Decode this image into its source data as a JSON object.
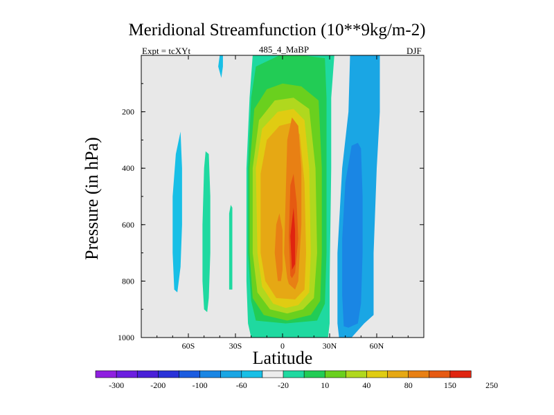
{
  "chart_data": {
    "type": "heatmap",
    "title": "Meridional Streamfunction (10**9kg/m-2)",
    "left_label": "Expt = tcXYt",
    "center_label": "485_4_MaBP",
    "right_label": "DJF",
    "xlabel": "Latitude",
    "ylabel": "Pressure (in hPa)",
    "xlim": [
      -90,
      90
    ],
    "ylim": [
      1000,
      0
    ],
    "x_ticks": [
      {
        "value": -60,
        "label": "60S"
      },
      {
        "value": -30,
        "label": "30S"
      },
      {
        "value": 0,
        "label": "0"
      },
      {
        "value": 30,
        "label": "30N"
      },
      {
        "value": 60,
        "label": "60N"
      }
    ],
    "y_ticks": [
      {
        "value": 200,
        "label": "200"
      },
      {
        "value": 400,
        "label": "400"
      },
      {
        "value": 600,
        "label": "600"
      },
      {
        "value": 800,
        "label": "800"
      },
      {
        "value": 1000,
        "label": "1000"
      }
    ],
    "colorbar": {
      "colors": [
        "#8f1fe0",
        "#6c1ee0",
        "#4a20d8",
        "#2a32d8",
        "#1c5ce0",
        "#1a86e4",
        "#1aa6e4",
        "#18bfe6",
        "#ececec",
        "#1fd9a0",
        "#22cc55",
        "#6ad01e",
        "#b0d81e",
        "#e0cc12",
        "#e6a814",
        "#e88014",
        "#e65a12",
        "#e02410"
      ],
      "labels": [
        {
          "after": 1,
          "text": "-300"
        },
        {
          "after": 3,
          "text": "-200"
        },
        {
          "after": 5,
          "text": "-100"
        },
        {
          "after": 7,
          "text": "-60"
        },
        {
          "after": 9,
          "text": "-20"
        },
        {
          "after": 11,
          "text": "10"
        },
        {
          "after": 13,
          "text": "40"
        },
        {
          "after": 15,
          "text": "80"
        },
        {
          "after": 17,
          "text": "150"
        },
        {
          "after": 19,
          "text": "250"
        }
      ]
    },
    "background": "#e8e8e8",
    "contour_regions": [
      {
        "name": "nh-low",
        "color": "#1aa6e4",
        "points": [
          [
            36,
            1000
          ],
          [
            35,
            950
          ],
          [
            35,
            700
          ],
          [
            38,
            400
          ],
          [
            42,
            200
          ],
          [
            43,
            0
          ],
          [
            62,
            0
          ],
          [
            62,
            200
          ],
          [
            60,
            400
          ],
          [
            58,
            700
          ],
          [
            58,
            920
          ],
          [
            52,
            950
          ],
          [
            44,
            1000
          ]
        ]
      },
      {
        "name": "nh-low-inner",
        "color": "#1a86e4",
        "points": [
          [
            39,
            960
          ],
          [
            38,
            850
          ],
          [
            38,
            650
          ],
          [
            40,
            450
          ],
          [
            44,
            320
          ],
          [
            48,
            310
          ],
          [
            50,
            330
          ],
          [
            51,
            500
          ],
          [
            51,
            700
          ],
          [
            50,
            880
          ],
          [
            48,
            950
          ],
          [
            42,
            965
          ]
        ]
      },
      {
        "name": "sh-sliver-a",
        "color": "#18bfe6",
        "points": [
          [
            -69,
            830
          ],
          [
            -70,
            700
          ],
          [
            -70,
            500
          ],
          [
            -68,
            350
          ],
          [
            -65,
            270
          ],
          [
            -64,
            400
          ],
          [
            -64,
            600
          ],
          [
            -65,
            750
          ],
          [
            -67,
            840
          ]
        ]
      },
      {
        "name": "sh-sliver-b",
        "color": "#1fd9a0",
        "points": [
          [
            -50,
            900
          ],
          [
            -51,
            800
          ],
          [
            -51,
            600
          ],
          [
            -50,
            400
          ],
          [
            -49,
            340
          ],
          [
            -47,
            350
          ],
          [
            -46,
            500
          ],
          [
            -46,
            700
          ],
          [
            -47,
            860
          ],
          [
            -48,
            910
          ]
        ]
      },
      {
        "name": "sh-sliver-c",
        "color": "#1fd9a0",
        "points": [
          [
            -34,
            830
          ],
          [
            -34,
            700
          ],
          [
            -34,
            560
          ],
          [
            -33,
            530
          ],
          [
            -32,
            540
          ],
          [
            -32,
            700
          ],
          [
            -32,
            830
          ]
        ]
      },
      {
        "name": "strat-streak",
        "color": "#18bfe6",
        "points": [
          [
            -40,
            0
          ],
          [
            -41,
            40
          ],
          [
            -39,
            80
          ],
          [
            -38,
            40
          ],
          [
            -38,
            0
          ]
        ]
      },
      {
        "name": "outer-10",
        "color": "#1fd9a0",
        "points": [
          [
            -20,
            1000
          ],
          [
            -22,
            950
          ],
          [
            -23,
            800
          ],
          [
            -23,
            400
          ],
          [
            -21,
            150
          ],
          [
            -19,
            0
          ],
          [
            33,
            0
          ],
          [
            31,
            150
          ],
          [
            31,
            400
          ],
          [
            30,
            800
          ],
          [
            30,
            950
          ],
          [
            29,
            1000
          ]
        ]
      },
      {
        "name": "c40",
        "color": "#22cc55",
        "points": [
          [
            -17,
            940
          ],
          [
            -20,
            870
          ],
          [
            -22,
            700
          ],
          [
            -22,
            400
          ],
          [
            -20,
            150
          ],
          [
            -17,
            40
          ],
          [
            -2,
            0
          ],
          [
            12,
            0
          ],
          [
            27,
            10
          ],
          [
            28,
            150
          ],
          [
            28,
            400
          ],
          [
            28,
            700
          ],
          [
            27,
            880
          ],
          [
            22,
            940
          ],
          [
            2,
            950
          ]
        ]
      },
      {
        "name": "c80",
        "color": "#6ad01e",
        "points": [
          [
            -12,
            920
          ],
          [
            -19,
            860
          ],
          [
            -21,
            700
          ],
          [
            -21,
            400
          ],
          [
            -18,
            190
          ],
          [
            -10,
            120
          ],
          [
            0,
            100
          ],
          [
            12,
            110
          ],
          [
            23,
            160
          ],
          [
            25,
            400
          ],
          [
            25,
            700
          ],
          [
            24,
            870
          ],
          [
            18,
            920
          ],
          [
            3,
            940
          ]
        ]
      },
      {
        "name": "c150",
        "color": "#b0d81e",
        "points": [
          [
            -8,
            900
          ],
          [
            -16,
            840
          ],
          [
            -19,
            700
          ],
          [
            -19,
            400
          ],
          [
            -15,
            230
          ],
          [
            -5,
            160
          ],
          [
            7,
            150
          ],
          [
            17,
            190
          ],
          [
            21,
            400
          ],
          [
            22,
            700
          ],
          [
            20,
            860
          ],
          [
            13,
            900
          ],
          [
            3,
            915
          ]
        ]
      },
      {
        "name": "c200",
        "color": "#e0cc12",
        "points": [
          [
            -6,
            880
          ],
          [
            -13,
            820
          ],
          [
            -16,
            700
          ],
          [
            -17,
            400
          ],
          [
            -13,
            260
          ],
          [
            -3,
            200
          ],
          [
            7,
            190
          ],
          [
            14,
            230
          ],
          [
            17,
            400
          ],
          [
            18,
            700
          ],
          [
            17,
            840
          ],
          [
            10,
            885
          ],
          [
            2,
            895
          ]
        ]
      },
      {
        "name": "c250",
        "color": "#e6a814",
        "points": [
          [
            -4,
            860
          ],
          [
            -11,
            800
          ],
          [
            -14,
            700
          ],
          [
            -14,
            420
          ],
          [
            -10,
            300
          ],
          [
            -2,
            250
          ],
          [
            5,
            240
          ],
          [
            11,
            280
          ],
          [
            14,
            450
          ],
          [
            15,
            700
          ],
          [
            14,
            830
          ],
          [
            8,
            865
          ]
        ]
      },
      {
        "name": "c300",
        "color": "#e88014",
        "points": [
          [
            3,
            790
          ],
          [
            1,
            700
          ],
          [
            2,
            500
          ],
          [
            3,
            300
          ],
          [
            6,
            220
          ],
          [
            10,
            250
          ],
          [
            12,
            400
          ],
          [
            12,
            600
          ],
          [
            11,
            700
          ],
          [
            10,
            800
          ],
          [
            8,
            830
          ],
          [
            4,
            810
          ]
        ]
      },
      {
        "name": "c300-west",
        "color": "#e88014",
        "points": [
          [
            -3,
            800
          ],
          [
            -5,
            700
          ],
          [
            -4,
            600
          ],
          [
            -2,
            560
          ],
          [
            0,
            620
          ],
          [
            0,
            760
          ],
          [
            -1,
            800
          ]
        ]
      },
      {
        "name": "c400",
        "color": "#e65a12",
        "points": [
          [
            5,
            780
          ],
          [
            4,
            640
          ],
          [
            5,
            460
          ],
          [
            7,
            420
          ],
          [
            9,
            520
          ],
          [
            10,
            650
          ],
          [
            8,
            770
          ],
          [
            6,
            790
          ]
        ]
      },
      {
        "name": "c500",
        "color": "#e02410",
        "points": [
          [
            6,
            760
          ],
          [
            5,
            640
          ],
          [
            7,
            540
          ],
          [
            8,
            620
          ],
          [
            8,
            740
          ]
        ]
      }
    ]
  }
}
